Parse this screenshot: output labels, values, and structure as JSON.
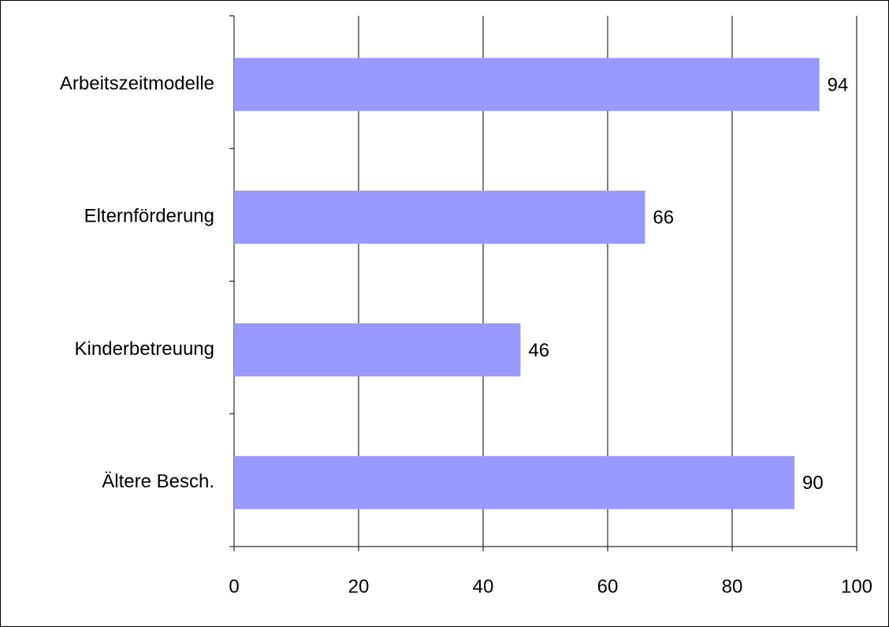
{
  "chart_data": {
    "type": "barh",
    "categories": [
      "Arbeitszeitmodelle",
      "Elternförderung",
      "Kinderbetreuung",
      "Ältere Besch."
    ],
    "values": [
      94,
      66,
      46,
      90
    ],
    "color": "#9999ff",
    "xlim": [
      0,
      100
    ],
    "xticks": [
      0,
      20,
      40,
      60,
      80,
      100
    ],
    "grid": true
  }
}
